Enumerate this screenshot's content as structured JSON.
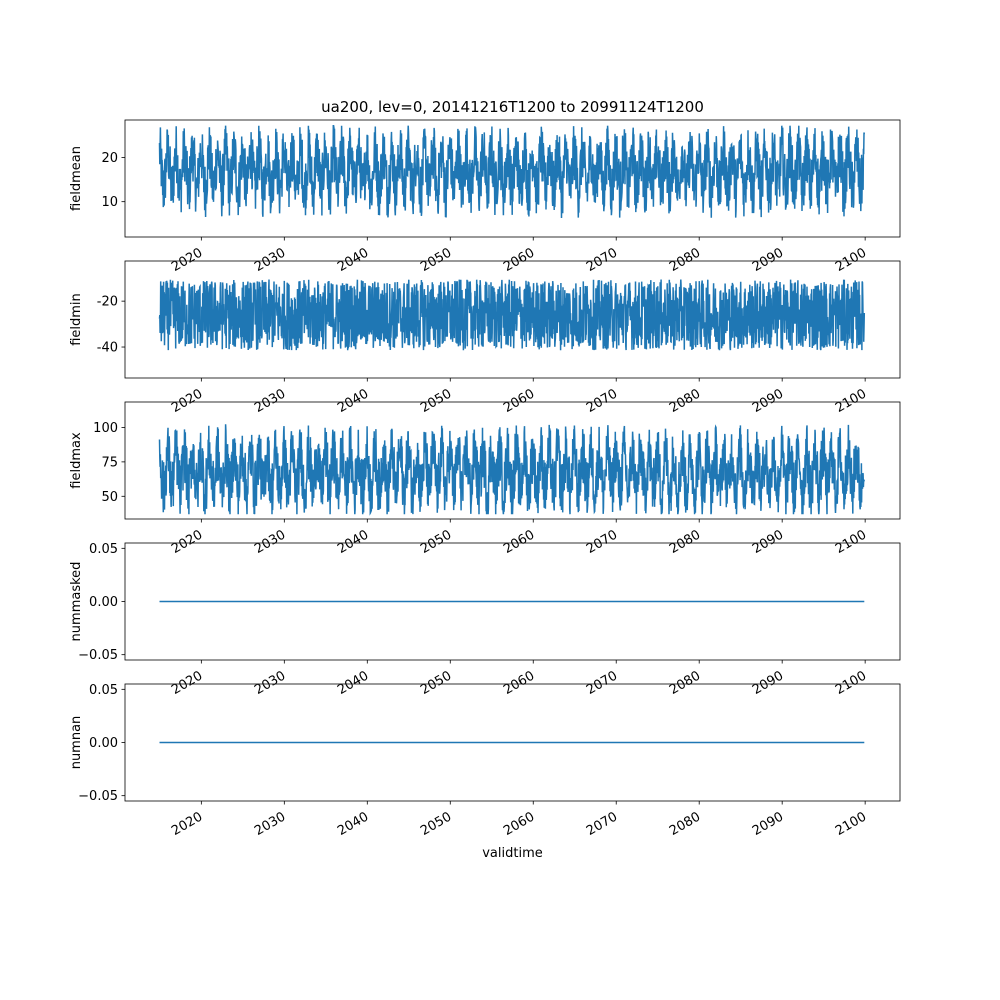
{
  "figure": {
    "title": "ua200, lev=0, 20141216T1200 to 20991124T1200",
    "xlabel": "validtime",
    "line_color": "#1f77b4"
  },
  "chart_data": [
    {
      "type": "line",
      "ylabel": "fieldmean",
      "xlim": [
        2010.8,
        2104.2
      ],
      "ylim": [
        2,
        28.5
      ],
      "yticks": [
        10,
        20
      ],
      "xticks": [
        2020,
        2030,
        2040,
        2050,
        2060,
        2070,
        2080,
        2090,
        2100
      ],
      "series": [
        {
          "x_start": "20141216T1200",
          "x_end": "20991124T1200",
          "approx_min": 3.0,
          "approx_max": 27.2,
          "approx_center": 17,
          "pattern": "annual oscillation"
        }
      ]
    },
    {
      "type": "line",
      "ylabel": "fieldmin",
      "xlim": [
        2010.8,
        2104.2
      ],
      "ylim": [
        -53.5,
        -2.5
      ],
      "yticks": [
        -40,
        -20
      ],
      "xticks": [
        2020,
        2030,
        2040,
        2050,
        2060,
        2070,
        2080,
        2090,
        2100
      ],
      "series": [
        {
          "x_start": "20141216T1200",
          "x_end": "20991124T1200",
          "approx_min": -51.5,
          "approx_max": -4.0,
          "approx_center": -26,
          "pattern": "dense noisy"
        }
      ]
    },
    {
      "type": "line",
      "ylabel": "fieldmax",
      "xlim": [
        2010.8,
        2104.2
      ],
      "ylim": [
        33.5,
        118.5
      ],
      "yticks": [
        50,
        75,
        100
      ],
      "xticks": [
        2020,
        2030,
        2040,
        2050,
        2060,
        2070,
        2080,
        2090,
        2100
      ],
      "series": [
        {
          "x_start": "20141216T1200",
          "x_end": "20991124T1200",
          "approx_min": 37,
          "approx_max": 114,
          "approx_center": 68,
          "pattern": "annual oscillation"
        }
      ]
    },
    {
      "type": "line",
      "ylabel": "nummasked",
      "xlim": [
        2010.8,
        2104.2
      ],
      "ylim": [
        -0.055,
        0.055
      ],
      "yticks": [
        -0.05,
        0.0,
        0.05
      ],
      "ytick_labels": [
        "−0.05",
        "0.00",
        "0.05"
      ],
      "xticks": [
        2020,
        2030,
        2040,
        2050,
        2060,
        2070,
        2080,
        2090,
        2100
      ],
      "series": [
        {
          "x_start": "20141216T1200",
          "x_end": "20991124T1200",
          "constant": 0.0
        }
      ]
    },
    {
      "type": "line",
      "ylabel": "numnan",
      "xlim": [
        2010.8,
        2104.2
      ],
      "ylim": [
        -0.055,
        0.055
      ],
      "yticks": [
        -0.05,
        0.0,
        0.05
      ],
      "ytick_labels": [
        "−0.05",
        "0.00",
        "0.05"
      ],
      "xticks": [
        2020,
        2030,
        2040,
        2050,
        2060,
        2070,
        2080,
        2090,
        2100
      ],
      "series": [
        {
          "x_start": "20141216T1200",
          "x_end": "20991124T1200",
          "constant": 0.0
        }
      ]
    }
  ]
}
